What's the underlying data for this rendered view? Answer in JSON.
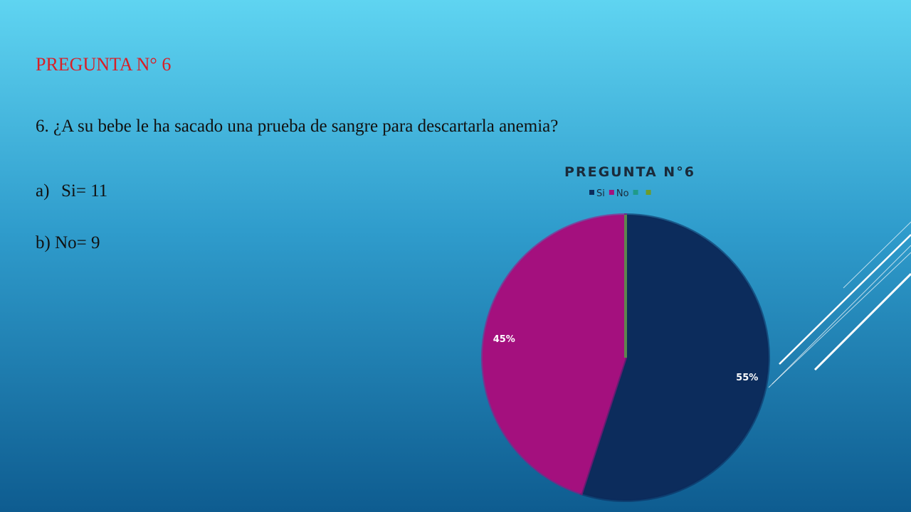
{
  "slide": {
    "heading": "PREGUNTA N° 6",
    "question": "6. ¿A su bebe le ha sacado una prueba de sangre para descartarla anemia?",
    "options": [
      {
        "marker": "a)",
        "text": "Si= 11"
      },
      {
        "marker": "b)",
        "text": "No= 9"
      }
    ]
  },
  "chart_data": {
    "type": "pie",
    "title": "PREGUNTA N°6",
    "categories": [
      "Si",
      "No",
      null,
      null
    ],
    "values": [
      55,
      45,
      0,
      0
    ],
    "value_labels": [
      "55%",
      "45%",
      null,
      null
    ],
    "colors": [
      "#0c2c5c",
      "#a4107e",
      "#1f9a8a",
      "#6c9b2b"
    ]
  }
}
